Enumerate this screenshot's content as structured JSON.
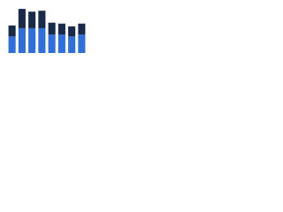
{
  "chart_data": {
    "type": "stacked-bar",
    "categories": [
      null,
      null,
      null,
      null,
      null,
      null,
      null,
      null
    ],
    "series": [
      {
        "color": "#2e6fdc",
        "values": [
          18,
          27,
          27,
          27,
          20,
          20,
          18,
          20
        ]
      },
      {
        "color": "#1a2b4a",
        "values": [
          12,
          21,
          18,
          19,
          13,
          12,
          11,
          12
        ]
      }
    ],
    "ylim": [
      0,
      50
    ]
  }
}
